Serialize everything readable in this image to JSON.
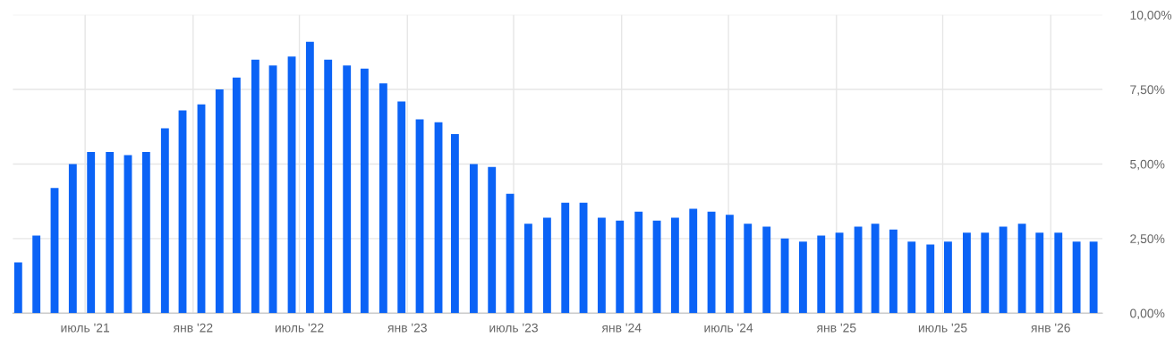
{
  "chart_data": {
    "type": "bar",
    "color": "#0b63f6",
    "x": [
      "2021-03-09",
      "2021-04-09",
      "2021-05-10",
      "2021-06-10",
      "2021-07-11",
      "2021-08-12",
      "2021-09-12",
      "2021-10-13",
      "2021-11-14",
      "2021-12-14",
      "2022-01-15",
      "2022-02-15",
      "2022-03-16",
      "2022-04-17",
      "2022-05-17",
      "2022-06-18",
      "2022-07-19",
      "2022-08-19",
      "2022-09-20",
      "2022-10-20",
      "2022-11-21",
      "2022-12-22",
      "2023-01-22",
      "2023-02-23",
      "2023-03-23",
      "2023-04-24",
      "2023-05-25",
      "2023-06-25",
      "2023-07-26",
      "2023-08-27",
      "2023-09-27",
      "2023-10-28",
      "2023-11-28",
      "2023-12-29",
      "2024-01-30",
      "2024-03-01",
      "2024-04-01",
      "2024-05-02",
      "2024-06-02",
      "2024-07-03",
      "2024-08-03",
      "2024-09-04",
      "2024-10-05",
      "2024-11-05",
      "2024-12-06",
      "2025-01-06",
      "2025-02-07",
      "2025-03-08",
      "2025-04-08",
      "2025-05-09",
      "2025-06-10",
      "2025-07-10",
      "2025-08-11",
      "2025-09-11",
      "2025-10-12",
      "2025-11-13",
      "2025-12-13",
      "2026-01-14",
      "2026-02-14",
      "2026-03-15"
    ],
    "values": [
      1.7,
      2.6,
      4.2,
      5.0,
      5.4,
      5.4,
      5.3,
      5.4,
      6.2,
      6.8,
      7.0,
      7.5,
      7.9,
      8.5,
      8.3,
      8.6,
      9.1,
      8.5,
      8.3,
      8.2,
      7.7,
      7.1,
      6.5,
      6.4,
      6.0,
      5.0,
      4.9,
      4.0,
      3.0,
      3.2,
      3.7,
      3.7,
      3.2,
      3.1,
      3.4,
      3.1,
      3.2,
      3.5,
      3.4,
      3.3,
      3.0,
      2.9,
      2.5,
      2.4,
      2.6,
      2.7,
      2.9,
      3.0,
      2.8,
      2.4,
      2.3,
      2.4,
      2.7,
      2.7,
      2.9,
      3.0,
      2.7,
      2.7,
      2.4,
      2.4
    ],
    "xlim": [
      "2021-02-28",
      "2026-03-30"
    ],
    "xticks": [
      {
        "value": "2021-07-01",
        "label": "июль '21"
      },
      {
        "value": "2022-01-01",
        "label": "янв '22"
      },
      {
        "value": "2022-07-01",
        "label": "июль '22"
      },
      {
        "value": "2023-01-01",
        "label": "янв '23"
      },
      {
        "value": "2023-07-01",
        "label": "июль '23"
      },
      {
        "value": "2024-01-01",
        "label": "янв '24"
      },
      {
        "value": "2024-07-01",
        "label": "июль '24"
      },
      {
        "value": "2025-01-01",
        "label": "янв '25"
      },
      {
        "value": "2025-07-01",
        "label": "июль '25"
      },
      {
        "value": "2026-01-01",
        "label": "янв '26"
      }
    ],
    "ylim": [
      0,
      10
    ],
    "yticks": [
      {
        "value": 0,
        "label": "0,00%"
      },
      {
        "value": 2.5,
        "label": "2,50%"
      },
      {
        "value": 5,
        "label": "5,00%"
      },
      {
        "value": 7.5,
        "label": "7,50%"
      },
      {
        "value": 10,
        "label": "10,00%"
      }
    ],
    "grid": true
  }
}
